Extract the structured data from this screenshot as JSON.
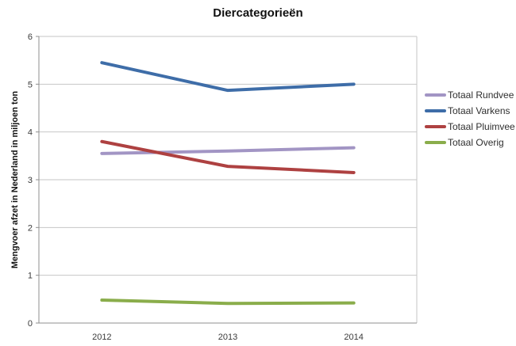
{
  "chart_data": {
    "type": "line",
    "title": "Diercategorieën",
    "ylabel": "Mengvoer afzet in Nederland in miljoen ton",
    "xlabel": "",
    "categories": [
      "2012",
      "2013",
      "2014"
    ],
    "series": [
      {
        "name": "Totaal Rundvee",
        "color": "#A295C4",
        "values": [
          3.55,
          3.6,
          3.67
        ]
      },
      {
        "name": "Totaal Varkens",
        "color": "#3E6DA8",
        "values": [
          5.45,
          4.87,
          5.0
        ]
      },
      {
        "name": "Totaal Pluimvee",
        "color": "#AE4141",
        "values": [
          3.8,
          3.28,
          3.15
        ]
      },
      {
        "name": "Totaal Overig",
        "color": "#8AAD4B",
        "values": [
          0.48,
          0.41,
          0.42
        ]
      }
    ],
    "ylim": [
      0,
      6
    ],
    "yticks": [
      0,
      1,
      2,
      3,
      4,
      5,
      6
    ],
    "grid": true,
    "legend_position": "right"
  },
  "style_colors": {
    "gridline": "#C6C6C6",
    "axis": "#8F8F8F",
    "tick_text": "#3A3A3A"
  }
}
